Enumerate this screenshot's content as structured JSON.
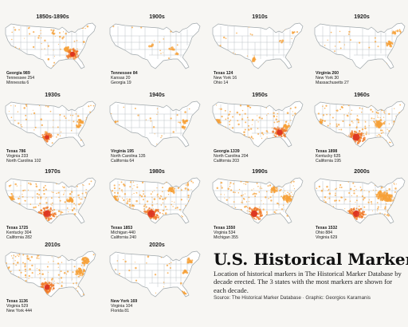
{
  "title": "U.S. Historical Markers",
  "description": "Location of historical markers in The Historical Marker Database by decade erected. The 3 states with the most markers are shown for each decade.",
  "source": "Source: The Historical Marker Database · Graphic: Georgios Karamanis",
  "colors": {
    "marker_low": "#f6a13a",
    "marker_high": "#d92b1e",
    "map_border": "#9fa7ab",
    "map_fill": "#ffffff"
  },
  "chart_data": {
    "type": "map",
    "panels": [
      {
        "decade": "1850s-1890s",
        "top": [
          {
            "state": "Georgia",
            "count": 989
          },
          {
            "state": "Tennessee",
            "count": 254
          },
          {
            "state": "Minnesota",
            "count": 6
          }
        ]
      },
      {
        "decade": "1900s",
        "top": [
          {
            "state": "Tennessee",
            "count": 84
          },
          {
            "state": "Kansas",
            "count": 20
          },
          {
            "state": "Georgia",
            "count": 19
          }
        ]
      },
      {
        "decade": "1910s",
        "top": [
          {
            "state": "Texas",
            "count": 124
          },
          {
            "state": "New York",
            "count": 16
          },
          {
            "state": "Ohio",
            "count": 14
          }
        ]
      },
      {
        "decade": "1920s",
        "top": [
          {
            "state": "Virginia",
            "count": 260
          },
          {
            "state": "New York",
            "count": 30
          },
          {
            "state": "Massachusetts",
            "count": 27
          }
        ]
      },
      {
        "decade": "1930s",
        "top": [
          {
            "state": "Texas",
            "count": 786
          },
          {
            "state": "Virginia",
            "count": 233
          },
          {
            "state": "North Carolina",
            "count": 102
          }
        ]
      },
      {
        "decade": "1940s",
        "top": [
          {
            "state": "Virginia",
            "count": 195
          },
          {
            "state": "North Carolina",
            "count": 135
          },
          {
            "state": "California",
            "count": 64
          }
        ]
      },
      {
        "decade": "1950s",
        "top": [
          {
            "state": "Georgia",
            "count": 1339
          },
          {
            "state": "North Carolina",
            "count": 204
          },
          {
            "state": "California",
            "count": 203
          }
        ]
      },
      {
        "decade": "1960s",
        "top": [
          {
            "state": "Texas",
            "count": 1898
          },
          {
            "state": "Kentucky",
            "count": 635
          },
          {
            "state": "California",
            "count": 195
          }
        ]
      },
      {
        "decade": "1970s",
        "top": [
          {
            "state": "Texas",
            "count": 1725
          },
          {
            "state": "Kentucky",
            "count": 304
          },
          {
            "state": "California",
            "count": 282
          }
        ]
      },
      {
        "decade": "1980s",
        "top": [
          {
            "state": "Texas",
            "count": 1853
          },
          {
            "state": "Michigan",
            "count": 440
          },
          {
            "state": "California",
            "count": 240
          }
        ]
      },
      {
        "decade": "1990s",
        "top": [
          {
            "state": "Texas",
            "count": 1550
          },
          {
            "state": "Virginia",
            "count": 534
          },
          {
            "state": "Michigan",
            "count": 355
          }
        ]
      },
      {
        "decade": "2000s",
        "top": [
          {
            "state": "Texas",
            "count": 1532
          },
          {
            "state": "Ohio",
            "count": 884
          },
          {
            "state": "Virginia",
            "count": 629
          }
        ]
      },
      {
        "decade": "2010s",
        "top": [
          {
            "state": "Texas",
            "count": 1136
          },
          {
            "state": "Virginia",
            "count": 529
          },
          {
            "state": "New York",
            "count": 444
          }
        ]
      },
      {
        "decade": "2020s",
        "top": [
          {
            "state": "New York",
            "count": 169
          },
          {
            "state": "Virginia",
            "count": 104
          },
          {
            "state": "Florida",
            "count": 81
          }
        ]
      }
    ]
  }
}
